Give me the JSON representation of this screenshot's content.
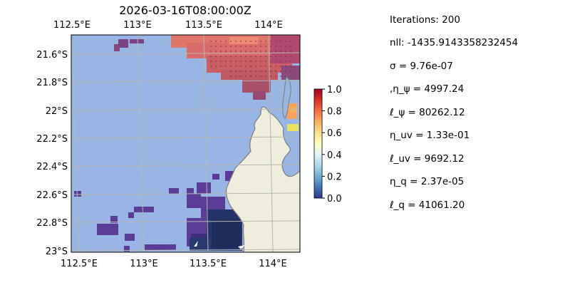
{
  "map": {
    "title": "2026-03-16T08:00:00Z",
    "top_xticks": [
      "112.5°E",
      "113°E",
      "113.5°E",
      "114°E"
    ],
    "bottom_xticks": [
      "112.5°E",
      "113°E",
      "113.5°E",
      "114°E"
    ],
    "yticks": [
      "21.6°S",
      "21.8°S",
      "22°S",
      "22.2°S",
      "22.4°S",
      "22.6°S",
      "22.8°S",
      "23°S"
    ],
    "colors": {
      "ocean": "#97b6e3",
      "land": "#efeddb",
      "coast": "#7c7c7c",
      "grid": "#b5b5b5"
    }
  },
  "colorbar": {
    "ticks": [
      "1.0",
      "0.8",
      "0.6",
      "0.4",
      "0.2",
      "0.0"
    ],
    "colormap": [
      "#313695",
      "#4575b4",
      "#74add1",
      "#abd9e9",
      "#e0f3f8",
      "#ffffbf",
      "#fee090",
      "#fdae61",
      "#f46d43",
      "#d73027",
      "#a50026"
    ]
  },
  "stats": {
    "iterations": "Iterations: 200",
    "nll": "nll: -1435.9143358232454",
    "sigma": "σ = 9.76e-07",
    "eta_psi": ",η_ψ = 4997.24",
    "ell_psi": "ℓ_ψ = 80262.12",
    "eta_uv": "η_uv = 1.33e-01",
    "ell_uv": "ℓ_uv = 9692.12",
    "eta_q": "η_q = 2.37e-05",
    "ell_q": "ℓ_q = 41061.20"
  }
}
